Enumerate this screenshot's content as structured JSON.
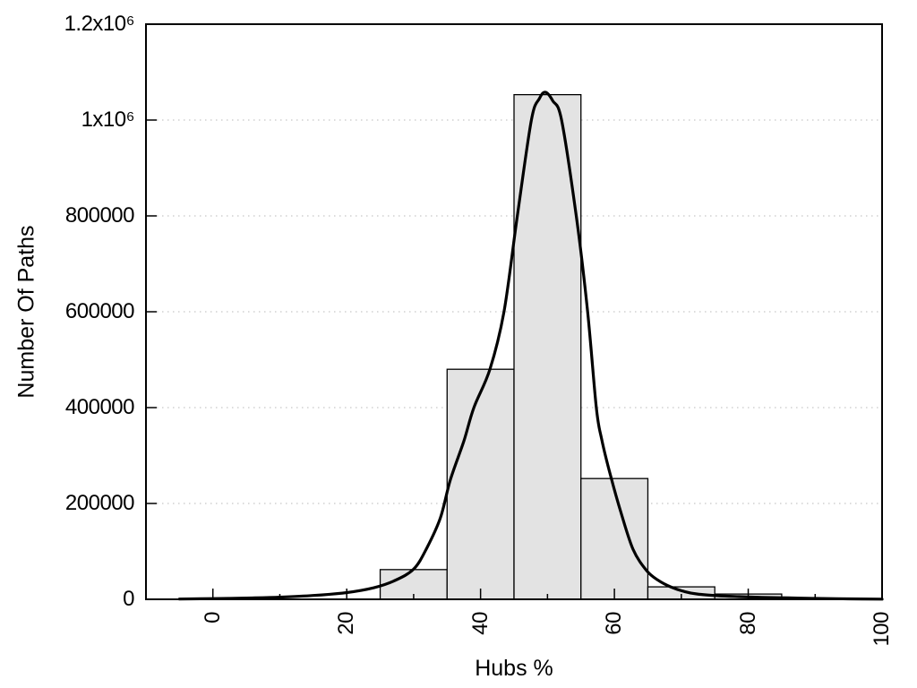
{
  "chart_data": {
    "type": "bar",
    "subtype": "histogram-with-smooth-fit-curve",
    "title": "",
    "xlabel": "Hubs %",
    "ylabel": "Number Of Paths",
    "xlim": [
      -10,
      100
    ],
    "ylim": [
      0,
      1200000
    ],
    "grid": "horizontal dotted lines at major y ticks",
    "legend": "none",
    "x_major_ticks": [
      0,
      20,
      40,
      60,
      80,
      100
    ],
    "x_major_tick_labels": [
      "0",
      "20",
      "40",
      "60",
      "80",
      "100"
    ],
    "x_minor_ticks": [
      10,
      30,
      50,
      70,
      90
    ],
    "x_tick_label_rotation_deg": -90,
    "y_major_ticks": [
      0,
      200000,
      400000,
      600000,
      800000,
      1000000,
      1200000
    ],
    "y_major_tick_labels": [
      "0",
      "200000",
      "400000",
      "600000",
      "800000",
      "1x10⁶",
      "1.2x10⁶"
    ],
    "histogram_bins": {
      "bin_width": 10,
      "bin_starts": [
        25,
        35,
        45,
        55,
        65,
        75
      ],
      "values": [
        62000,
        480000,
        1053000,
        252000,
        26000,
        11000
      ]
    },
    "fit_curve": {
      "name": "smooth-fit-curve",
      "peak": {
        "x": 49.7,
        "y": 1058000
      },
      "points": [
        [
          -5,
          600
        ],
        [
          0,
          1500
        ],
        [
          5,
          2600
        ],
        [
          10,
          4500
        ],
        [
          15,
          8000
        ],
        [
          20,
          14000
        ],
        [
          24,
          24000
        ],
        [
          27,
          38000
        ],
        [
          30,
          63000
        ],
        [
          32,
          108000
        ],
        [
          34,
          170000
        ],
        [
          35.5,
          250000
        ],
        [
          37.5,
          330000
        ],
        [
          39,
          400000
        ],
        [
          41.4,
          480000
        ],
        [
          43.5,
          600000
        ],
        [
          45.5,
          800000
        ],
        [
          47.6,
          1000000
        ],
        [
          48.8,
          1045000
        ],
        [
          49.7,
          1058000
        ],
        [
          50.8,
          1040000
        ],
        [
          52.1,
          1000000
        ],
        [
          54.3,
          800000
        ],
        [
          56,
          600000
        ],
        [
          57.3,
          400000
        ],
        [
          58.1,
          334000
        ],
        [
          59.5,
          254000
        ],
        [
          61,
          180000
        ],
        [
          62.8,
          104000
        ],
        [
          64.8,
          60000
        ],
        [
          66.5,
          40000
        ],
        [
          68.4,
          26000
        ],
        [
          70.5,
          16000
        ],
        [
          72.4,
          11000
        ],
        [
          75.5,
          7500
        ],
        [
          78.6,
          5600
        ],
        [
          82,
          4200
        ],
        [
          86,
          2900
        ],
        [
          90,
          1900
        ],
        [
          95,
          1000
        ],
        [
          100,
          400
        ]
      ]
    },
    "colors": {
      "background": "#ffffff",
      "bar_fill": "#e3e3e3",
      "bar_border": "#000000",
      "curve": "#000000",
      "grid": "#b8b8b8",
      "axis": "#000000",
      "text": "#000000"
    }
  }
}
